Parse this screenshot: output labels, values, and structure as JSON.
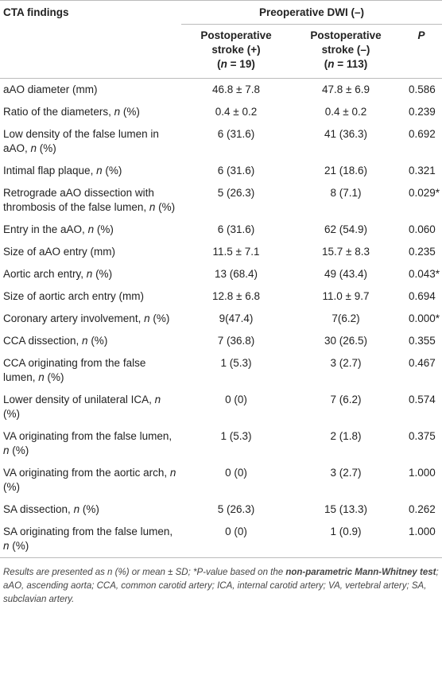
{
  "header": {
    "findings": "CTA findings",
    "group": "Preoperative DWI (–)",
    "columns": [
      {
        "title": "Postoperative stroke (+)",
        "count": "(n = 19)"
      },
      {
        "title": "Postoperative stroke (–)",
        "count": "(n = 113)"
      },
      {
        "title": "P"
      }
    ]
  },
  "table": {
    "rows": [
      [
        "aAO diameter (mm)",
        "46.8 ± 7.8",
        "47.8 ± 6.9",
        "0.586"
      ],
      [
        "Ratio of the diameters, n (%)",
        "0.4 ± 0.2",
        "0.4 ± 0.2",
        "0.239"
      ],
      [
        "Low density of the false lumen in aAO, n (%)",
        "6 (31.6)",
        "41 (36.3)",
        "0.692"
      ],
      [
        "Intimal flap plaque, n (%)",
        "6 (31.6)",
        "21 (18.6)",
        "0.321"
      ],
      [
        "Retrograde aAO dissection with thrombosis of the false lumen, n (%)",
        "5 (26.3)",
        "8 (7.1)",
        "0.029*"
      ],
      [
        "Entry in the aAO, n (%)",
        "6 (31.6)",
        "62 (54.9)",
        "0.060"
      ],
      [
        "Size of aAO entry (mm)",
        "11.5 ± 7.1",
        "15.7 ± 8.3",
        "0.235"
      ],
      [
        "Aortic arch entry, n (%)",
        "13 (68.4)",
        "49 (43.4)",
        "0.043*"
      ],
      [
        "Size of aortic arch entry (mm)",
        "12.8 ± 6.8",
        "11.0 ± 9.7",
        "0.694"
      ],
      [
        "Coronary artery involvement, n (%)",
        "9(47.4)",
        "7(6.2)",
        "0.000*"
      ],
      [
        "CCA dissection, n (%)",
        "7 (36.8)",
        "30 (26.5)",
        "0.355"
      ],
      [
        "CCA originating from the false lumen, n (%)",
        "1 (5.3)",
        "3 (2.7)",
        "0.467"
      ],
      [
        "Lower density of unilateral ICA, n (%)",
        "0 (0)",
        "7 (6.2)",
        "0.574"
      ],
      [
        "VA originating from the false lumen, n (%)",
        "1 (5.3)",
        "2 (1.8)",
        "0.375"
      ],
      [
        "VA originating from the aortic arch, n (%)",
        "0 (0)",
        "3 (2.7)",
        "1.000"
      ],
      [
        "SA dissection, n (%)",
        "5 (26.3)",
        "15 (13.3)",
        "0.262"
      ],
      [
        "SA originating from the false lumen, n (%)",
        "0 (0)",
        "1 (0.9)",
        "1.000"
      ]
    ]
  },
  "footnote": [
    "Results are presented as n (%) or mean ± SD; *P-value based on the ",
    "non-parametric Mann-Whitney test",
    "; aAO, ascending aorta; CCA, common carotid artery; ICA, internal carotid artery; VA, vertebral artery; SA, subclavian artery."
  ]
}
